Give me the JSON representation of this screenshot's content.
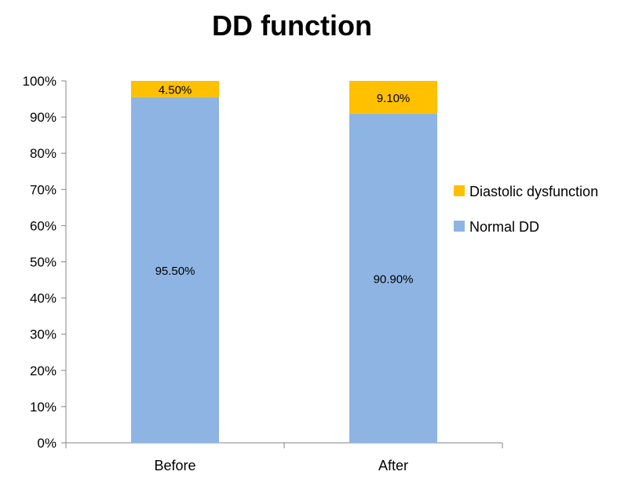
{
  "chart_data": {
    "type": "bar",
    "stacked": true,
    "percent_stacked": true,
    "title": "DD function",
    "xlabel": "",
    "ylabel": "",
    "categories": [
      "Before",
      "After"
    ],
    "ylim": [
      0,
      100
    ],
    "yticks": [
      0,
      10,
      20,
      30,
      40,
      50,
      60,
      70,
      80,
      90,
      100
    ],
    "ytick_labels": [
      "0%",
      "10%",
      "20%",
      "30%",
      "40%",
      "50%",
      "60%",
      "70%",
      "80%",
      "90%",
      "100%"
    ],
    "grid": false,
    "legend_position": "right",
    "series": [
      {
        "name": "Normal DD",
        "values": [
          95.5,
          90.9
        ],
        "labels": [
          "95.50%",
          "90.90%"
        ],
        "color": "#8eb4e3"
      },
      {
        "name": "Diastolic dysfunction",
        "values": [
          4.5,
          9.1
        ],
        "labels": [
          "4.50%",
          "9.10%"
        ],
        "color": "#ffc000"
      }
    ],
    "legend_order": [
      "Diastolic dysfunction",
      "Normal DD"
    ]
  }
}
